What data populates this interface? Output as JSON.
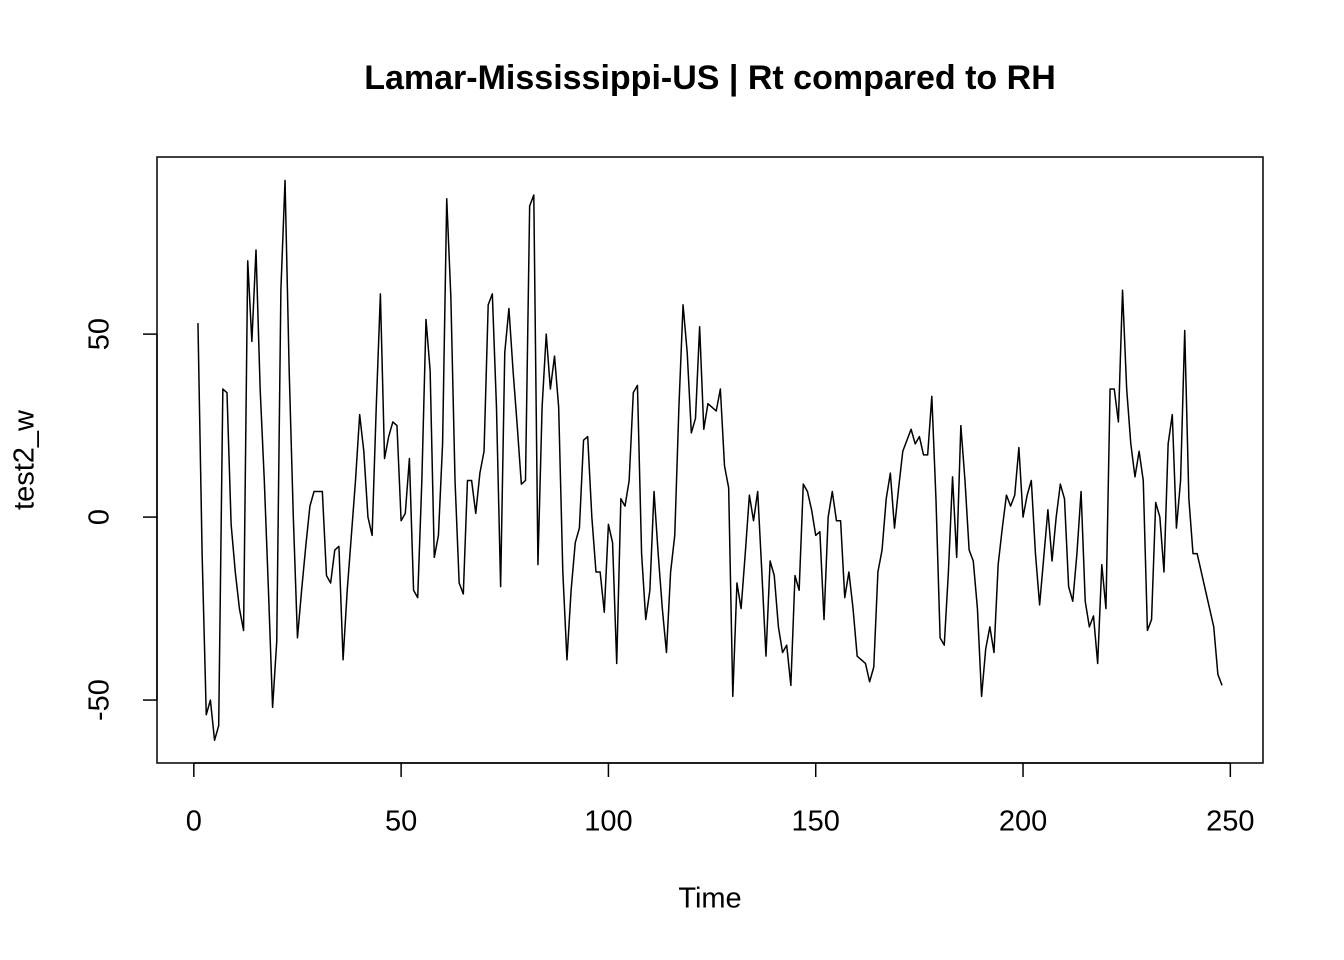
{
  "chart_data": {
    "type": "line",
    "title": "Lamar-Mississippi-US | Rt compared to RH",
    "xlabel": "Time",
    "ylabel": "test2_w",
    "x": [
      1,
      2,
      3,
      4,
      5,
      6,
      7,
      8,
      9,
      10,
      11,
      12,
      13,
      14,
      15,
      16,
      17,
      18,
      19,
      20,
      21,
      22,
      23,
      24,
      25,
      26,
      27,
      28,
      29,
      30,
      31,
      32,
      33,
      34,
      35,
      36,
      37,
      38,
      39,
      40,
      41,
      42,
      43,
      44,
      45,
      46,
      47,
      48,
      49,
      50,
      51,
      52,
      53,
      54,
      55,
      56,
      57,
      58,
      59,
      60,
      61,
      62,
      63,
      64,
      65,
      66,
      67,
      68,
      69,
      70,
      71,
      72,
      73,
      74,
      75,
      76,
      77,
      78,
      79,
      80,
      81,
      82,
      83,
      84,
      85,
      86,
      87,
      88,
      89,
      90,
      91,
      92,
      93,
      94,
      95,
      96,
      97,
      98,
      99,
      100,
      101,
      102,
      103,
      104,
      105,
      106,
      107,
      108,
      109,
      110,
      111,
      112,
      113,
      114,
      115,
      116,
      117,
      118,
      119,
      120,
      121,
      122,
      123,
      124,
      125,
      126,
      127,
      128,
      129,
      130,
      131,
      132,
      133,
      134,
      135,
      136,
      137,
      138,
      139,
      140,
      141,
      142,
      143,
      144,
      145,
      146,
      147,
      148,
      149,
      150,
      151,
      152,
      153,
      154,
      155,
      156,
      157,
      158,
      159,
      160,
      161,
      162,
      163,
      164,
      165,
      166,
      167,
      168,
      169,
      170,
      171,
      172,
      173,
      174,
      175,
      176,
      177,
      178,
      179,
      180,
      181,
      182,
      183,
      184,
      185,
      186,
      187,
      188,
      189,
      190,
      191,
      192,
      193,
      194,
      195,
      196,
      197,
      198,
      199,
      200,
      201,
      202,
      203,
      204,
      205,
      206,
      207,
      208,
      209,
      210,
      211,
      212,
      213,
      214,
      215,
      216,
      217,
      218,
      219,
      220,
      221,
      222,
      223,
      224,
      225,
      226,
      227,
      228,
      229,
      230,
      231,
      232,
      233,
      234,
      235,
      236,
      237,
      238,
      239,
      240,
      241,
      242,
      243,
      244,
      245,
      246,
      247,
      248
    ],
    "values": [
      53,
      -10,
      -54,
      -50,
      -61,
      -57,
      35,
      34,
      -2,
      -15,
      -25,
      -31,
      70,
      48,
      73,
      35,
      10,
      -20,
      -52,
      -34,
      62,
      92,
      40,
      0,
      -33,
      -20,
      -8,
      3,
      7,
      7,
      7,
      -16,
      -18,
      -9,
      -8,
      -39,
      -20,
      -5,
      10,
      28,
      18,
      0,
      -5,
      30,
      61,
      16,
      22,
      26,
      25,
      -1,
      1,
      16,
      -20,
      -22,
      10,
      54,
      40,
      -11,
      -5,
      20,
      87,
      60,
      10,
      -18,
      -21,
      10,
      10,
      1,
      12,
      18,
      58,
      61,
      30,
      -19,
      45,
      57,
      40,
      25,
      9,
      10,
      85,
      88,
      -13,
      30,
      50,
      35,
      44,
      30,
      -15,
      -39,
      -20,
      -7,
      -3,
      21,
      22,
      0,
      -15,
      -15,
      -26,
      -2,
      -7,
      -40,
      5,
      3,
      10,
      34,
      36,
      -10,
      -28,
      -20,
      7,
      -10,
      -25,
      -37,
      -15,
      -5,
      30,
      58,
      45,
      23,
      27,
      52,
      24,
      31,
      30,
      29,
      35,
      14,
      8,
      -49,
      -18,
      -25,
      -10,
      6,
      -1,
      7,
      -15,
      -38,
      -12,
      -16,
      -30,
      -37,
      -35,
      -46,
      -16,
      -20,
      9,
      7,
      2,
      -5,
      -4,
      -28,
      0,
      7,
      -1,
      -1,
      -22,
      -15,
      -25,
      -38,
      -39,
      -40,
      -45,
      -41,
      -15,
      -9,
      5,
      12,
      -3,
      8,
      18,
      21,
      24,
      20,
      22,
      17,
      17,
      33,
      5,
      -33,
      -35,
      -15,
      11,
      -11,
      25,
      10,
      -9,
      -12,
      -25,
      -49,
      -36,
      -30,
      -37,
      -13,
      -3,
      6,
      3,
      6,
      19,
      0,
      6,
      10,
      -10,
      -24,
      -11,
      2,
      -12,
      0,
      9,
      5,
      -19,
      -23,
      -10,
      7,
      -23,
      -30,
      -27,
      -40,
      -13,
      -25,
      35,
      35,
      26,
      62,
      35,
      20,
      11,
      18,
      10,
      -31,
      -28,
      4,
      0,
      -15,
      20,
      28,
      -3,
      10,
      51,
      5,
      -10,
      -10,
      -15,
      -20,
      -25,
      -30,
      -43,
      -46
    ],
    "color": "#000000",
    "xlim": [
      -8.88,
      257.88
    ],
    "ylim": [
      -67.2,
      98.4
    ],
    "xticks": [
      0,
      50,
      100,
      150,
      200,
      250
    ],
    "yticks": [
      -50,
      0,
      50
    ]
  }
}
